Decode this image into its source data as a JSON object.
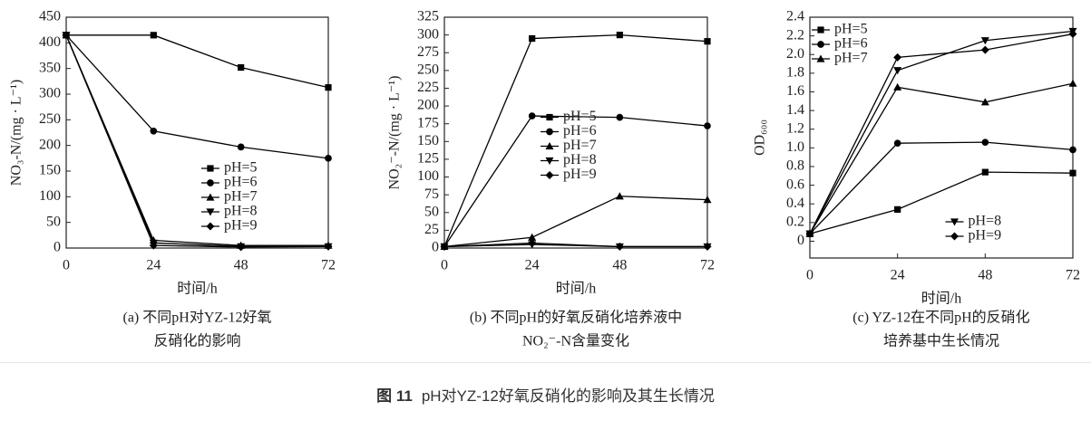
{
  "chart_data": [
    {
      "type": "line",
      "ylabel": "NO₃-N/(mg · L⁻¹)",
      "xlabel": "时间/h",
      "caption": [
        "(a) 不同pH对YZ-12好氧",
        "反硝化的影响"
      ],
      "x": [
        0,
        24,
        48,
        72
      ],
      "xlim": [
        0,
        72
      ],
      "xticks": [
        0,
        24,
        48,
        72
      ],
      "ylim": [
        0,
        450
      ],
      "yticks": [
        0,
        50,
        100,
        150,
        200,
        250,
        300,
        350,
        400,
        450
      ],
      "legend": "lower right",
      "series": [
        {
          "name": "pH=5",
          "color": "#000000",
          "marker": "square",
          "values": [
            415,
            415,
            352,
            313
          ]
        },
        {
          "name": "pH=6",
          "color": "#000000",
          "marker": "circle",
          "values": [
            415,
            228,
            197,
            175
          ]
        },
        {
          "name": "pH=7",
          "color": "#000000",
          "marker": "triangle-up",
          "values": [
            415,
            15,
            5,
            5
          ]
        },
        {
          "name": "pH=8",
          "color": "#000000",
          "marker": "triangle-down",
          "values": [
            415,
            10,
            3,
            3
          ]
        },
        {
          "name": "pH=9",
          "color": "#000000",
          "marker": "diamond",
          "values": [
            415,
            5,
            2,
            3
          ]
        }
      ]
    },
    {
      "type": "line",
      "ylabel": "NO₂⁻-N/(mg · L⁻¹)",
      "xlabel": "时间/h",
      "caption": [
        "(b) 不同pH的好氧反硝化培养液中",
        "NO₂⁻-N含量变化"
      ],
      "x": [
        0,
        24,
        48,
        72
      ],
      "xlim": [
        0,
        72
      ],
      "xticks": [
        0,
        24,
        48,
        72
      ],
      "ylim": [
        0,
        325
      ],
      "yticks": [
        0,
        25,
        50,
        75,
        100,
        125,
        150,
        175,
        200,
        225,
        250,
        275,
        300,
        325
      ],
      "legend": "center right",
      "series": [
        {
          "name": "pH=5",
          "color": "#000000",
          "marker": "square",
          "values": [
            2,
            295,
            300,
            291
          ]
        },
        {
          "name": "pH=6",
          "color": "#000000",
          "marker": "circle",
          "values": [
            2,
            186,
            184,
            172
          ]
        },
        {
          "name": "pH=7",
          "color": "#000000",
          "marker": "triangle-up",
          "values": [
            2,
            15,
            73,
            68
          ]
        },
        {
          "name": "pH=8",
          "color": "#000000",
          "marker": "triangle-down",
          "values": [
            2,
            5,
            2,
            2
          ]
        },
        {
          "name": "pH=9",
          "color": "#000000",
          "marker": "diamond",
          "values": [
            2,
            7,
            2,
            2
          ]
        }
      ]
    },
    {
      "type": "line",
      "ylabel": "OD₆₀₀",
      "xlabel": "时间/h",
      "caption": [
        "(c) YZ-12在不同pH的反硝化",
        "培养基中生长情况"
      ],
      "x": [
        0,
        24,
        48,
        72
      ],
      "xlim": [
        0,
        72
      ],
      "xticks": [
        0,
        24,
        48,
        72
      ],
      "ylim": [
        -0.18,
        2.4
      ],
      "yticks": [
        0,
        0.2,
        0.4,
        0.6,
        0.8,
        {
          "value": 1,
          "label": "1.0"
        },
        1.2,
        1.4,
        1.6,
        1.8,
        {
          "value": 2,
          "label": "2.0"
        },
        2.2,
        2.4
      ],
      "legend": "upper left",
      "series": [
        {
          "name": "pH=5",
          "color": "#000000",
          "marker": "square",
          "values": [
            0.08,
            0.34,
            0.74,
            0.73
          ]
        },
        {
          "name": "pH=6",
          "color": "#000000",
          "marker": "circle",
          "values": [
            0.08,
            1.05,
            1.06,
            0.98
          ]
        },
        {
          "name": "pH=7",
          "color": "#000000",
          "marker": "triangle-up",
          "values": [
            0.08,
            1.65,
            1.49,
            1.69
          ]
        },
        {
          "name": "pH=8",
          "color": "#000000",
          "marker": "triangle-down",
          "legend": "lower right",
          "values": [
            0.08,
            1.83,
            2.15,
            2.25
          ]
        },
        {
          "name": "pH=9",
          "color": "#000000",
          "marker": "diamond",
          "legend": "lower right",
          "values": [
            0.08,
            1.97,
            2.05,
            2.22
          ]
        }
      ]
    }
  ],
  "figure": {
    "label": "图 11",
    "title": "pH对YZ-12好氧反硝化的影响及其生长情况"
  }
}
